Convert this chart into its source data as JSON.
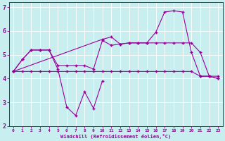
{
  "xlabel": "Windchill (Refroidissement éolien,°C)",
  "bg_color": "#c8eef0",
  "line_color": "#990099",
  "xlim": [
    -0.5,
    23.5
  ],
  "ylim": [
    2,
    7.2
  ],
  "xticks": [
    0,
    1,
    2,
    3,
    4,
    5,
    6,
    7,
    8,
    9,
    10,
    11,
    12,
    13,
    14,
    15,
    16,
    17,
    18,
    19,
    20,
    21,
    22,
    23
  ],
  "yticks": [
    2,
    3,
    4,
    5,
    6,
    7
  ],
  "series": {
    "line1_x": [
      0,
      1,
      2,
      3,
      4,
      5,
      6,
      7,
      8,
      9,
      10,
      11,
      12,
      13,
      14,
      15,
      16,
      17,
      18,
      19,
      20,
      21,
      22,
      23
    ],
    "line1_y": [
      4.3,
      4.3,
      4.3,
      4.3,
      4.3,
      4.3,
      4.3,
      4.3,
      4.3,
      4.3,
      4.3,
      4.3,
      4.3,
      4.3,
      4.3,
      4.3,
      4.3,
      4.3,
      4.3,
      4.3,
      4.3,
      4.1,
      4.1,
      4.0
    ],
    "line2_x": [
      0,
      1,
      2,
      3,
      4,
      5,
      6,
      7,
      8,
      9,
      10,
      11,
      12,
      13,
      14,
      15,
      16,
      17,
      18,
      19,
      20,
      21,
      22,
      23
    ],
    "line2_y": [
      4.3,
      4.8,
      5.2,
      5.2,
      5.2,
      4.55,
      4.55,
      4.55,
      4.55,
      4.4,
      5.6,
      5.4,
      5.45,
      5.5,
      5.5,
      5.5,
      5.5,
      5.5,
      5.5,
      5.5,
      5.5,
      5.1,
      4.1,
      4.1
    ],
    "line3_x": [
      0,
      1,
      2,
      3,
      4,
      5,
      6,
      7,
      8,
      9,
      10
    ],
    "line3_y": [
      4.3,
      4.8,
      5.2,
      5.2,
      5.2,
      4.4,
      2.8,
      2.45,
      3.45,
      2.75,
      3.9
    ],
    "line4_x": [
      0,
      10,
      11,
      12,
      13,
      14,
      15,
      16,
      17,
      18,
      19,
      20,
      21,
      22,
      23
    ],
    "line4_y": [
      4.3,
      5.65,
      5.75,
      5.45,
      5.5,
      5.5,
      5.5,
      5.95,
      6.8,
      6.85,
      6.8,
      5.1,
      4.1,
      4.1,
      4.0
    ]
  }
}
